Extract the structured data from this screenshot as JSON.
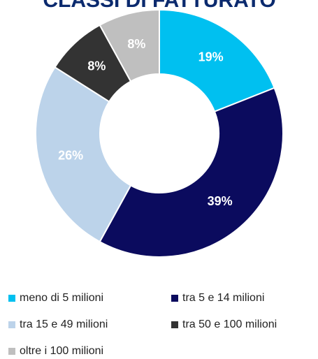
{
  "chart_data": {
    "type": "donut",
    "title": "CLASSI DI FATTURATO",
    "categories": [
      "meno di 5 milioni",
      "tra 5 e 14 milioni",
      "tra 15 e 49 milioni",
      "tra 50 e 100 milioni",
      "oltre i 100 milioni"
    ],
    "values": [
      19,
      39,
      26,
      8,
      8
    ],
    "value_labels": [
      "19%",
      "39%",
      "26%",
      "8%",
      "8%"
    ],
    "colors": [
      "#00c0f0",
      "#0b0b5e",
      "#bcd3ea",
      "#333333",
      "#bfbfbf"
    ]
  }
}
